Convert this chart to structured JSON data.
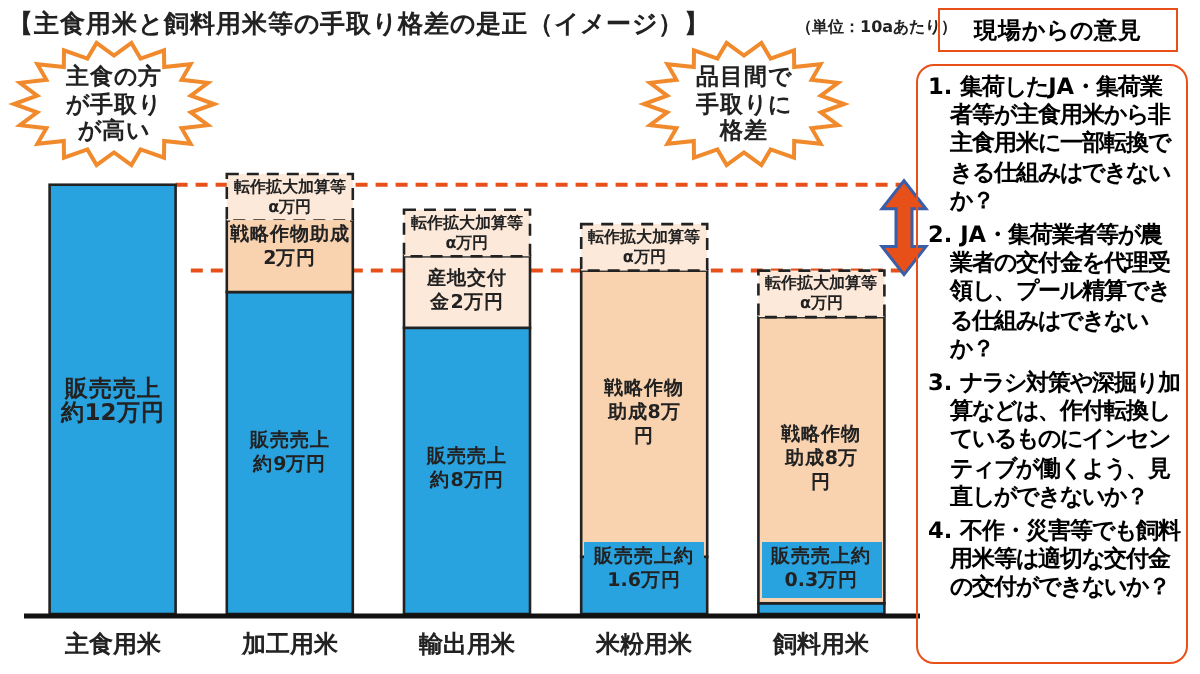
{
  "chart_data": [
    {
      "type": "bar",
      "title": "【主食用米と飼料用米等の手取り格差の是正（イメージ）】",
      "subtitle": "（単位：10aあたり）",
      "categories": [
        "主食用米",
        "加工用米",
        "輸出用米",
        "米粉用米",
        "飼料用米"
      ],
      "stacked": true,
      "series": [
        {
          "color": "#29a3e0",
          "values": [
            12,
            9,
            8,
            1.6,
            0.3
          ],
          "value_labels": [
            "販売売上約12万円",
            "販売売上約9万円",
            "販売売上約8万円",
            "販売売上約1.6万円",
            "販売売上約0.3万円"
          ]
        },
        {
          "colors": [
            null,
            "#f9d3b0",
            "#fde9da",
            "#f9d3b0",
            "#f9d3b0"
          ],
          "values": [
            null,
            2,
            2,
            8,
            8
          ],
          "value_labels": [
            null,
            "戦略作物助成2万円",
            "産地交付金2万円",
            "戦略作物助成8万円",
            "戦略作物助成8万円"
          ]
        },
        {
          "color": "#fde9da",
          "line_style": "dashed",
          "values": [
            null,
            1.3,
            1.3,
            1.3,
            1.3
          ],
          "value_labels": [
            null,
            "転作拡大加算等α万円",
            "転作拡大加算等α万円",
            "転作拡大加算等α万円",
            "転作拡大加算等α万円"
          ]
        }
      ],
      "ref_lines": [
        {
          "axis": "y",
          "value": 12,
          "color": "#e8501a",
          "line_style": "dashed"
        },
        {
          "axis": "y",
          "value": 9.6,
          "color": "#e8501a",
          "line_style": "dashed"
        }
      ],
      "annotations": [
        "主食の方が手取りが高い",
        "品目間で手取りに格差"
      ]
    },
    {
      "type": "other",
      "title": "現場からの意見",
      "annotations": [
        "1. 集荷したJA・集荷業者等が主食用米から非主食用米に一部転換できる仕組みはできないか？",
        "2. JA・集荷業者等が農業者の交付金を代理受領し、プール精算できる仕組みはできないか？",
        "3. ナラシ対策や深掘り加算などは、作付転換しているものにインセンティブが働くよう、見直しができないか？",
        "4. 不作・災害等でも飼料用米等は適切な交付金の交付ができないか？"
      ]
    }
  ]
}
